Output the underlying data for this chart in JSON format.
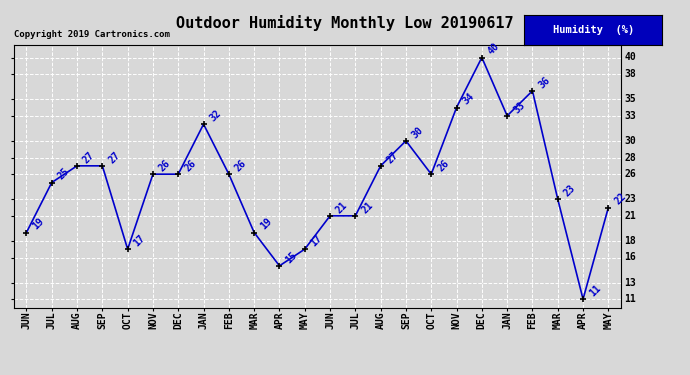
{
  "title": "Outdoor Humidity Monthly Low 20190617",
  "copyright": "Copyright 2019 Cartronics.com",
  "legend_label": "Humidity  (%)",
  "categories": [
    "JUN",
    "JUL",
    "AUG",
    "SEP",
    "OCT",
    "NOV",
    "DEC",
    "JAN",
    "FEB",
    "MAR",
    "APR",
    "MAY",
    "JUN",
    "JUL",
    "AUG",
    "SEP",
    "OCT",
    "NOV",
    "DEC",
    "JAN",
    "FEB",
    "MAR",
    "APR",
    "MAY"
  ],
  "values": [
    19,
    25,
    27,
    27,
    17,
    26,
    26,
    32,
    26,
    19,
    15,
    17,
    21,
    21,
    27,
    30,
    26,
    34,
    40,
    33,
    36,
    23,
    11,
    22
  ],
  "yticks": [
    11,
    13,
    16,
    18,
    21,
    23,
    26,
    28,
    30,
    33,
    35,
    38,
    40
  ],
  "ymin": 10,
  "ymax": 41.5,
  "line_color": "#0000cc",
  "marker_color": "#000000",
  "bg_color": "#d8d8d8",
  "plot_bg_color": "#d8d8d8",
  "grid_color": "#ffffff",
  "title_fontsize": 11,
  "label_fontsize": 7,
  "tick_fontsize": 7,
  "copyright_fontsize": 6.5
}
